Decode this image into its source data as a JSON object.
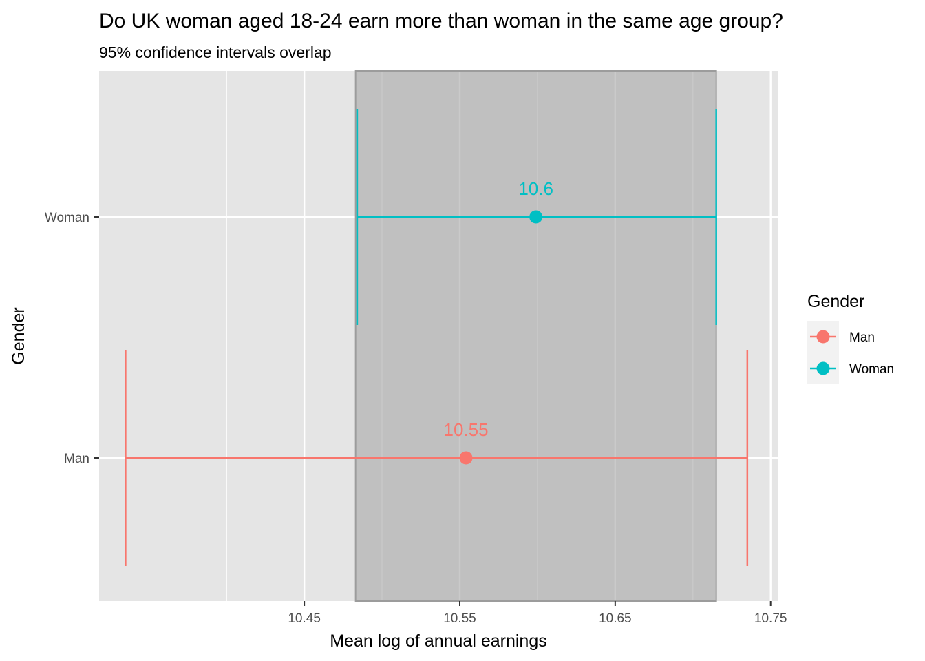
{
  "chart_data": {
    "type": "errorbar",
    "title": "Do UK woman aged 18-24 earn more than woman in the same age group?",
    "subtitle": "95% confidence intervals overlap",
    "xlabel": "Mean log of annual earnings",
    "ylabel": "Gender",
    "xlim": [
      10.318,
      10.755
    ],
    "x_ticks": [
      10.45,
      10.55,
      10.65,
      10.75
    ],
    "x_tick_labels": [
      "10.45",
      "10.55",
      "10.65",
      "10.75"
    ],
    "categories": [
      "Man",
      "Woman"
    ],
    "series": [
      {
        "name": "Man",
        "mean": 10.554,
        "lower": 10.335,
        "upper": 10.735,
        "label": "10.55",
        "color": "#F8766D"
      },
      {
        "name": "Woman",
        "mean": 10.599,
        "lower": 10.484,
        "upper": 10.715,
        "label": "10.6",
        "color": "#00BFC4"
      }
    ],
    "overlap_band": {
      "from": 10.483,
      "to": 10.715
    },
    "grid": true,
    "legend": {
      "title": "Gender",
      "position": "right",
      "entries": [
        "Man",
        "Woman"
      ]
    },
    "colors": {
      "panel": "#E5E5E5",
      "grid": "#FFFFFF",
      "band": "#BEBEBE"
    }
  }
}
